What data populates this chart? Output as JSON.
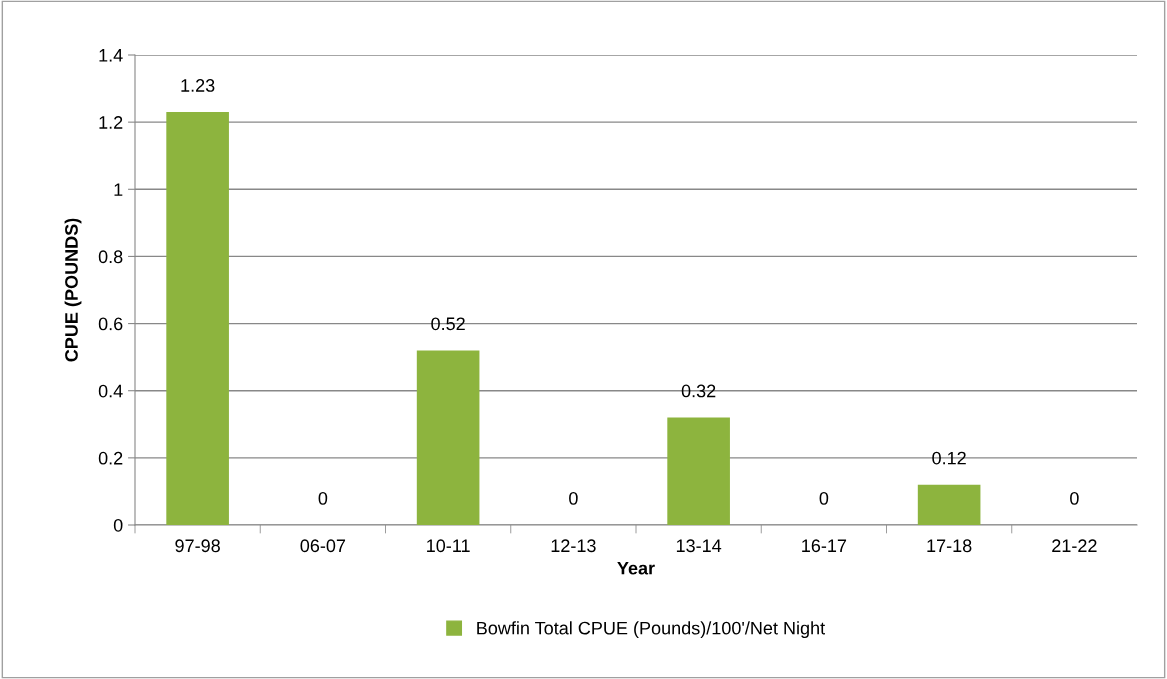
{
  "chart_data": {
    "type": "bar",
    "xlabel": "Year",
    "ylabel": "CPUE (POUNDS)",
    "categories": [
      "97-98",
      "06-07",
      "10-11",
      "12-13",
      "13-14",
      "16-17",
      "17-18",
      "21-22"
    ],
    "series": [
      {
        "name": "Bowfin Total CPUE (Pounds)/100'/Net Night",
        "color": "#8db43e",
        "values": [
          1.23,
          0,
          0.52,
          0,
          0.32,
          0,
          0.12,
          0
        ]
      }
    ],
    "ylim": [
      0,
      1.4
    ],
    "yticks": [
      0,
      0.2,
      0.4,
      0.6,
      0.8,
      1,
      1.2,
      1.4
    ],
    "grid": "y",
    "legend": "bottom",
    "data_labels": true
  }
}
